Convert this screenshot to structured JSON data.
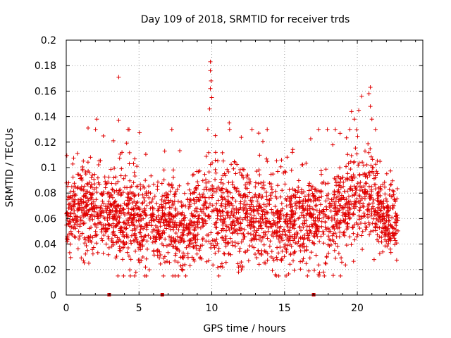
{
  "chart_data": {
    "type": "scatter",
    "title": "Day 109 of 2018, SRMTID for receiver trds",
    "xlabel": "GPS time / hours",
    "ylabel": "SRMTID / TECUs",
    "xlim": [
      0,
      24.5
    ],
    "ylim": [
      0,
      0.2
    ],
    "x_ticks": [
      0,
      5,
      10,
      15,
      20
    ],
    "x_tick_labels": [
      "0",
      "5",
      "10",
      "15",
      "20"
    ],
    "y_ticks": [
      0,
      0.02,
      0.04,
      0.06,
      0.08,
      0.1,
      0.12,
      0.14,
      0.16,
      0.18,
      0.2
    ],
    "y_tick_labels": [
      "0",
      "0.02",
      "0.04",
      "0.06",
      "0.08",
      "0.1",
      "0.12",
      "0.14",
      "0.16",
      "0.18",
      "0.2"
    ],
    "grid": true,
    "marker": "plus",
    "color": "#e00000",
    "point_count": 2600,
    "hour_range": [
      0,
      22.8
    ],
    "level_profile": {
      "hours": [
        0,
        1,
        2,
        3,
        4,
        5,
        6,
        7,
        8,
        9,
        10,
        11,
        12,
        13,
        14,
        15,
        16,
        17,
        18,
        19,
        20,
        21,
        22,
        22.8
      ],
      "median": [
        0.062,
        0.066,
        0.068,
        0.062,
        0.062,
        0.055,
        0.052,
        0.058,
        0.05,
        0.06,
        0.068,
        0.062,
        0.058,
        0.062,
        0.058,
        0.055,
        0.058,
        0.06,
        0.058,
        0.068,
        0.078,
        0.076,
        0.058,
        0.056
      ],
      "spread": [
        0.018,
        0.02,
        0.02,
        0.018,
        0.022,
        0.02,
        0.02,
        0.02,
        0.018,
        0.02,
        0.022,
        0.02,
        0.02,
        0.02,
        0.02,
        0.02,
        0.02,
        0.02,
        0.02,
        0.022,
        0.022,
        0.022,
        0.018,
        0.016
      ]
    },
    "peaks": [
      {
        "x": 3.6,
        "y": 0.171
      },
      {
        "x": 9.9,
        "y": 0.183
      },
      {
        "x": 9.9,
        "y": 0.176
      },
      {
        "x": 9.95,
        "y": 0.168
      },
      {
        "x": 9.9,
        "y": 0.162
      },
      {
        "x": 10.0,
        "y": 0.155
      },
      {
        "x": 9.85,
        "y": 0.146
      },
      {
        "x": 3.6,
        "y": 0.137
      },
      {
        "x": 2.1,
        "y": 0.138
      },
      {
        "x": 1.5,
        "y": 0.131
      },
      {
        "x": 11.2,
        "y": 0.135
      },
      {
        "x": 20.3,
        "y": 0.156
      },
      {
        "x": 20.9,
        "y": 0.163
      },
      {
        "x": 20.8,
        "y": 0.158
      },
      {
        "x": 20.9,
        "y": 0.148
      },
      {
        "x": 20.1,
        "y": 0.145
      },
      {
        "x": 19.6,
        "y": 0.144
      },
      {
        "x": 21.0,
        "y": 0.138
      },
      {
        "x": 19.8,
        "y": 0.138
      }
    ],
    "gap_markers": [
      {
        "x": 2.95,
        "y": 0.0
      },
      {
        "x": 6.6,
        "y": 0.0
      },
      {
        "x": 17.0,
        "y": 0.0
      }
    ]
  }
}
